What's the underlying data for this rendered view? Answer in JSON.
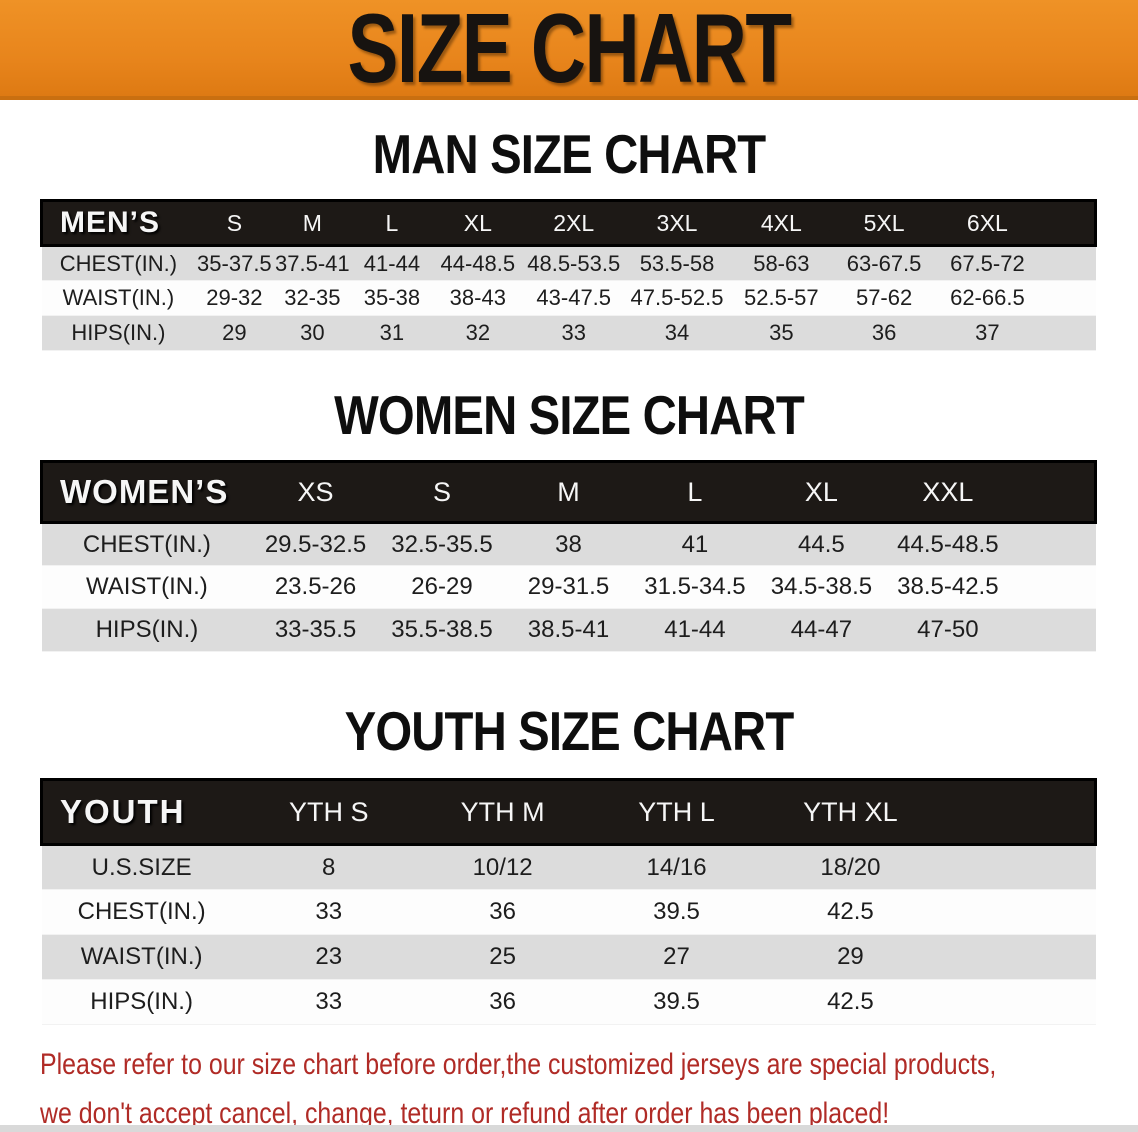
{
  "banner": {
    "title": "SIZE CHART"
  },
  "colors": {
    "banner_orange": "#e8851c",
    "header_bar_black": "#1d1916",
    "zebra_gray": "#dcdcdc",
    "disclaimer_red": "#b02b26"
  },
  "sections": [
    {
      "heading": "MAN SIZE CHART",
      "table": {
        "header": [
          "MEN’S",
          "S",
          "M",
          "L",
          "XL",
          "2XL",
          "3XL",
          "4XL",
          "5XL",
          "6XL"
        ],
        "rows": [
          {
            "label": "CHEST(IN.)",
            "values": [
              "35-37.5",
              "37.5-41",
              "41-44",
              "44-48.5",
              "48.5-53.5",
              "53.5-58",
              "58-63",
              "63-67.5",
              "67.5-72"
            ]
          },
          {
            "label": "WAIST(IN.)",
            "values": [
              "29-32",
              "32-35",
              "35-38",
              "38-43",
              "43-47.5",
              "47.5-52.5",
              "52.5-57",
              "57-62",
              "62-66.5"
            ]
          },
          {
            "label": "HIPS(IN.)",
            "values": [
              "29",
              "30",
              "31",
              "32",
              "33",
              "34",
              "35",
              "36",
              "37"
            ]
          }
        ]
      }
    },
    {
      "heading": "WOMEN SIZE CHART",
      "table": {
        "header": [
          "WOMEN’S",
          "XS",
          "S",
          "M",
          "L",
          "XL",
          "XXL"
        ],
        "rows": [
          {
            "label": "CHEST(IN.)",
            "values": [
              "29.5-32.5",
              "32.5-35.5",
              "38",
              "41",
              "44.5",
              "44.5-48.5"
            ]
          },
          {
            "label": "WAIST(IN.)",
            "values": [
              "23.5-26",
              "26-29",
              "29-31.5",
              "31.5-34.5",
              "34.5-38.5",
              "38.5-42.5"
            ]
          },
          {
            "label": "HIPS(IN.)",
            "values": [
              "33-35.5",
              "35.5-38.5",
              "38.5-41",
              "41-44",
              "44-47",
              "47-50"
            ]
          }
        ]
      }
    },
    {
      "heading": "YOUTH SIZE CHART",
      "table": {
        "header": [
          "YOUTH",
          "YTH S",
          "YTH M",
          "YTH L",
          "YTH XL"
        ],
        "rows": [
          {
            "label": "U.S.SIZE",
            "values": [
              "8",
              "10/12",
              "14/16",
              "18/20"
            ]
          },
          {
            "label": "CHEST(IN.)",
            "values": [
              "33",
              "36",
              "39.5",
              "42.5"
            ]
          },
          {
            "label": "WAIST(IN.)",
            "values": [
              "23",
              "25",
              "27",
              "29"
            ]
          },
          {
            "label": "HIPS(IN.)",
            "values": [
              "33",
              "36",
              "39.5",
              "42.5"
            ]
          }
        ]
      }
    }
  ],
  "disclaimer": {
    "lines": [
      "Please refer to our size chart before order,the customized jerseys are special products,",
      "we don't accept cancel, change, teturn or refund after order has been placed!"
    ]
  }
}
